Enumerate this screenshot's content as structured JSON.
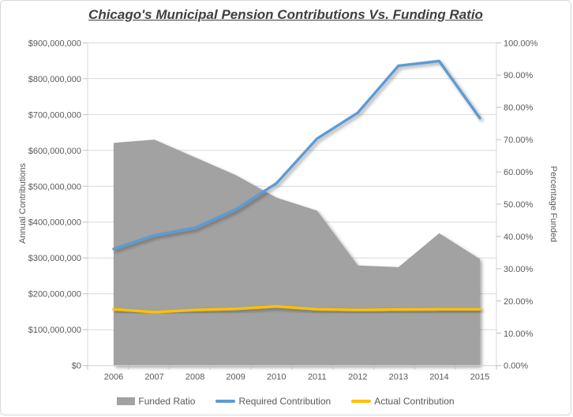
{
  "window": {
    "title": "Chicago's Municipal Pension Contributions Vs. Funding Ratio"
  },
  "chart_data": {
    "type": "combo",
    "title": "Chicago's Municipal Pension Contributions Vs. Funding Ratio",
    "categories": [
      "2006",
      "2007",
      "2008",
      "2009",
      "2010",
      "2011",
      "2012",
      "2013",
      "2014",
      "2015"
    ],
    "series": [
      {
        "name": "Funded Ratio",
        "type": "area",
        "axis": "right",
        "color": "#a2a2a2",
        "values_percent": [
          69,
          70,
          64.5,
          59,
          52,
          48,
          31,
          30.5,
          41,
          33
        ]
      },
      {
        "name": "Required Contribution",
        "type": "line",
        "axis": "left",
        "color": "#5b9bd5",
        "values_dollars": [
          325000000,
          363000000,
          384000000,
          435000000,
          508000000,
          633000000,
          705000000,
          836000000,
          849000000,
          690000000
        ]
      },
      {
        "name": "Actual Contribution",
        "type": "line",
        "axis": "left",
        "color": "#ffc000",
        "values_dollars": [
          157000000,
          149000000,
          155000000,
          158000000,
          165000000,
          157000000,
          155000000,
          156000000,
          157000000,
          157000000
        ]
      }
    ],
    "left_axis": {
      "label": "Annual Contributions",
      "min": 0,
      "max": 900000000,
      "major_unit": 100000000,
      "tick_labels_top_to_bottom": [
        "$900,000,000",
        "$800,000,000",
        "$700,000,000",
        "$600,000,000",
        "$500,000,000",
        "$400,000,000",
        "$300,000,000",
        "$200,000,000",
        "$100,000,000",
        "$0"
      ]
    },
    "right_axis": {
      "label": "Percentage Funded",
      "min": 0,
      "max": 100,
      "major_unit": 10,
      "tick_labels_top_to_bottom": [
        "100.00%",
        "90.00%",
        "80.00%",
        "70.00%",
        "60.00%",
        "50.00%",
        "40.00%",
        "30.00%",
        "20.00%",
        "10.00%",
        "0.00%"
      ]
    },
    "grid": true,
    "gridline_color": "#d9d9d9",
    "axis_line_color": "#d9d9d9",
    "tick_color": "#bfbfbf",
    "text_color": "#595959",
    "title_color": "#404040",
    "legend_position": "bottom"
  },
  "legend": {
    "items": [
      {
        "label": "Funded Ratio",
        "swatch": "area",
        "color": "#a2a2a2"
      },
      {
        "label": "Required Contribution",
        "swatch": "line",
        "color": "#5b9bd5"
      },
      {
        "label": "Actual Contribution",
        "swatch": "line",
        "color": "#ffc000"
      }
    ]
  }
}
